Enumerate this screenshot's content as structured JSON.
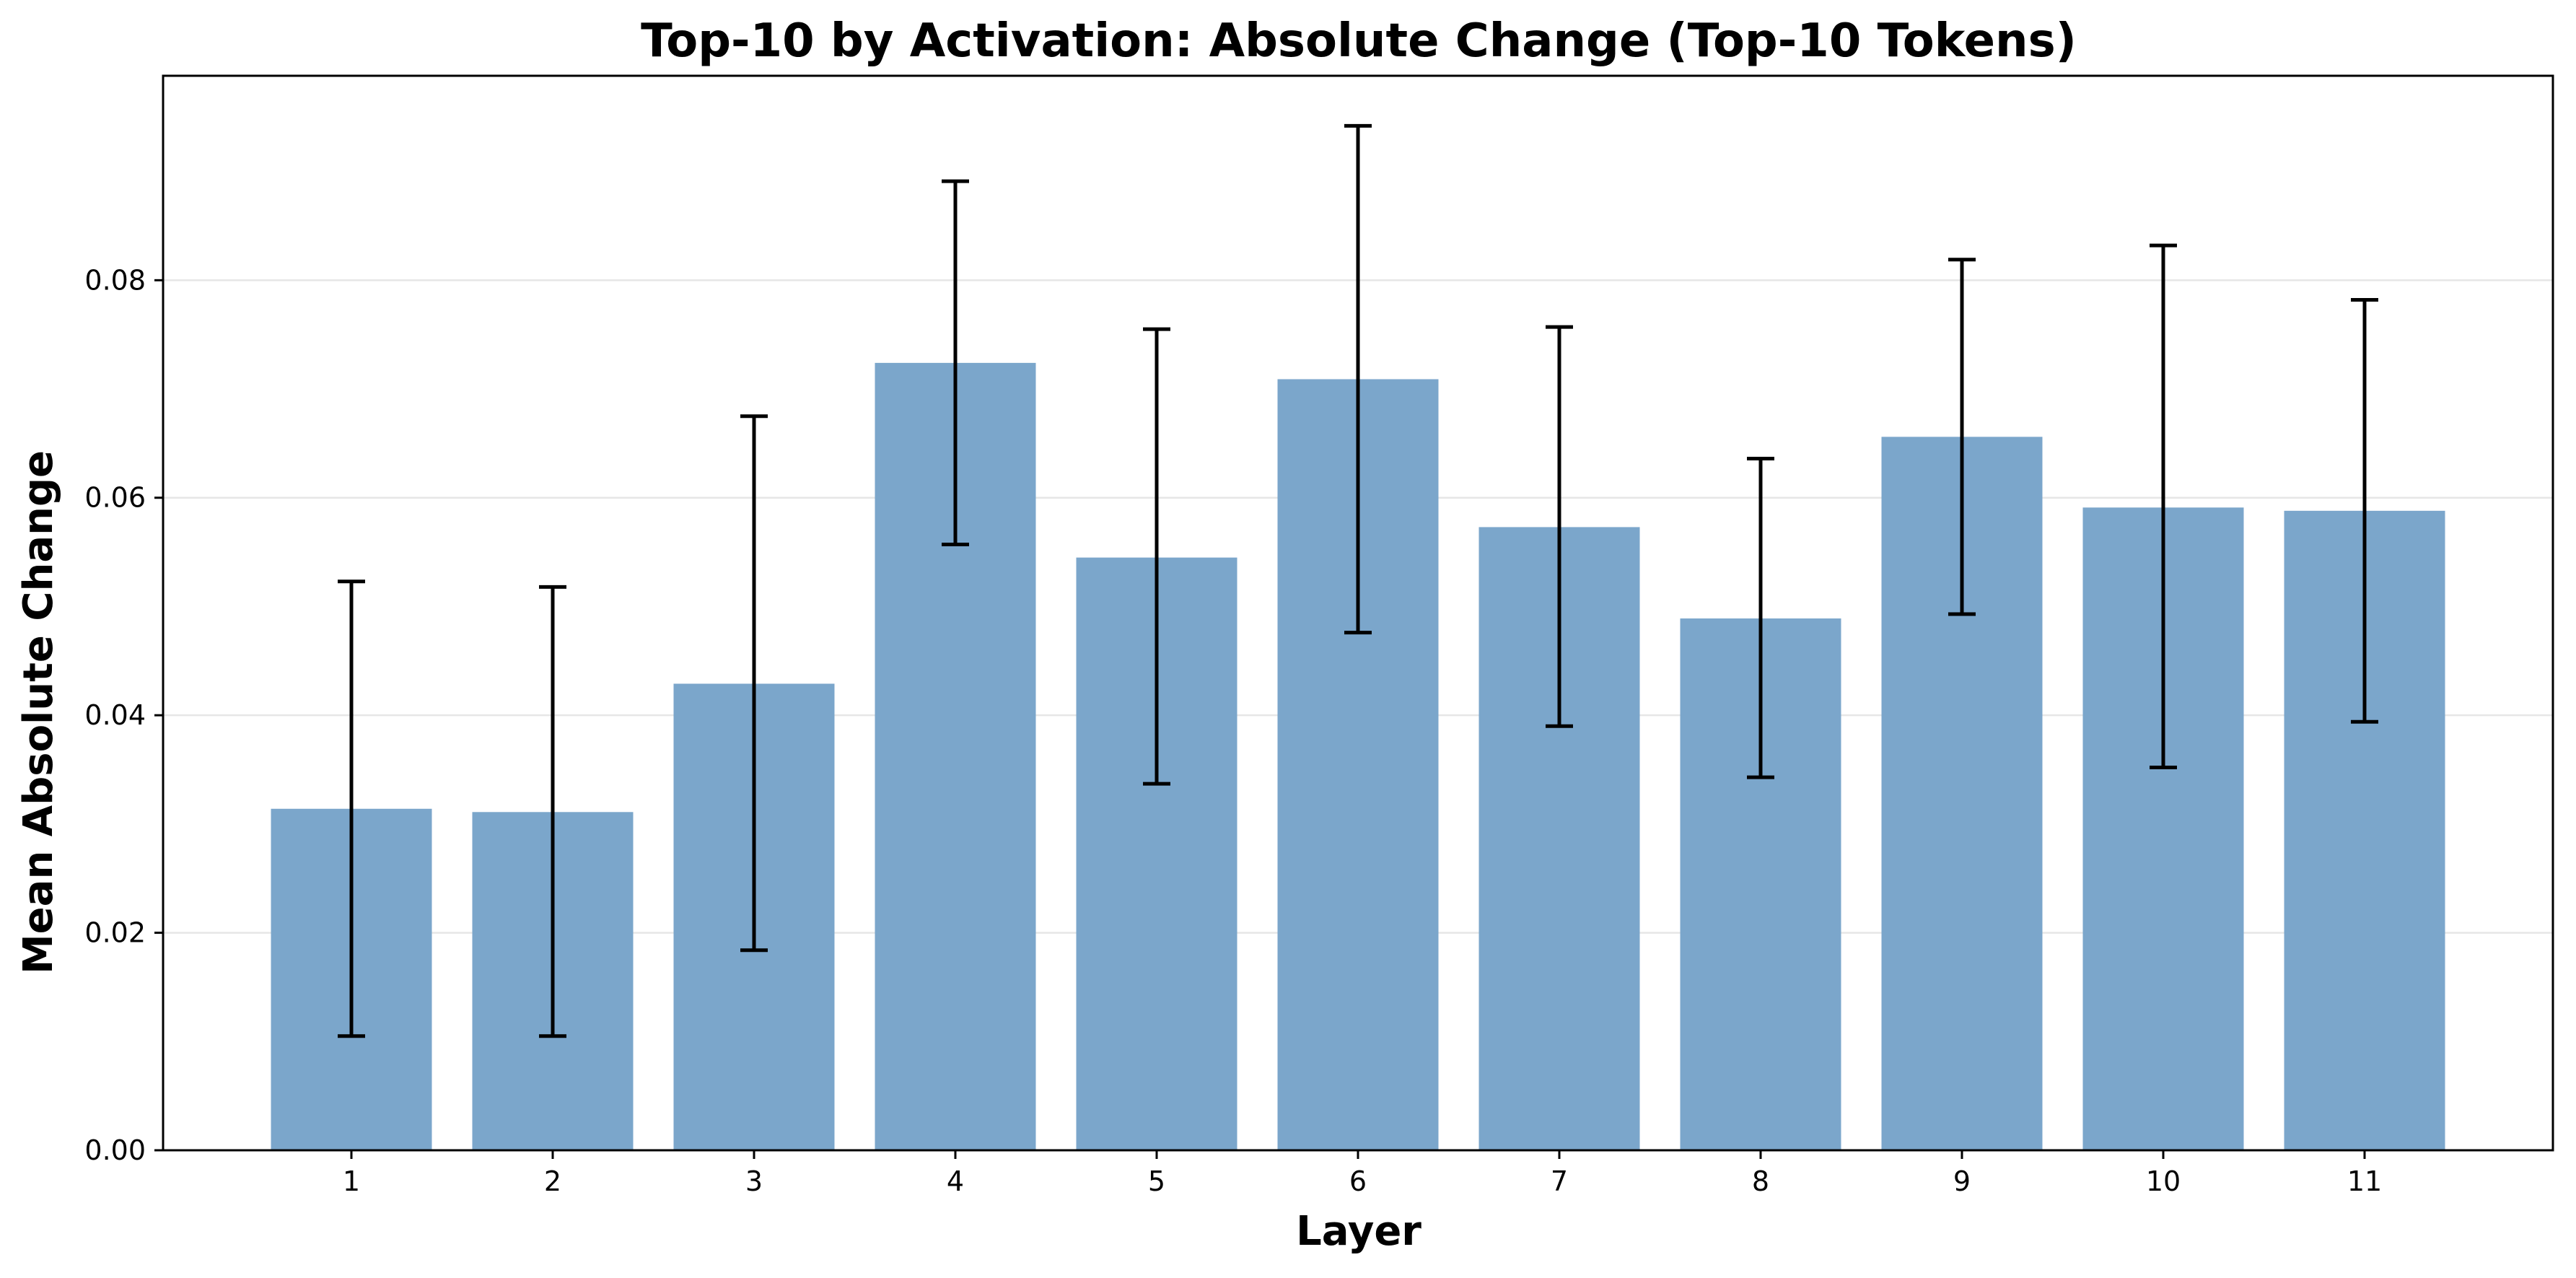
{
  "chart_data": {
    "type": "bar",
    "title": "Top-10 by Activation: Absolute Change (Top-10 Tokens)",
    "xlabel": "Layer",
    "ylabel": "Mean Absolute Change",
    "categories": [
      "1",
      "2",
      "3",
      "4",
      "5",
      "6",
      "7",
      "8",
      "9",
      "10",
      "11"
    ],
    "values": [
      0.0314,
      0.0311,
      0.0429,
      0.0724,
      0.0545,
      0.0709,
      0.0573,
      0.0489,
      0.0656,
      0.0591,
      0.0588
    ],
    "error_low": [
      0.0105,
      0.0105,
      0.0184,
      0.0557,
      0.0337,
      0.0476,
      0.039,
      0.0343,
      0.0493,
      0.0352,
      0.0394
    ],
    "error_high": [
      0.0523,
      0.0518,
      0.0675,
      0.0891,
      0.0755,
      0.0942,
      0.0757,
      0.0636,
      0.0819,
      0.0832,
      0.0782
    ],
    "ylim": [
      0,
      0.0988
    ],
    "yticks": [
      "0.00",
      "0.02",
      "0.04",
      "0.06",
      "0.08"
    ],
    "grid": "horizontal",
    "bar_color": "#7ba6cb",
    "error_color": "#000000",
    "grid_color": "#e6e6e6"
  }
}
